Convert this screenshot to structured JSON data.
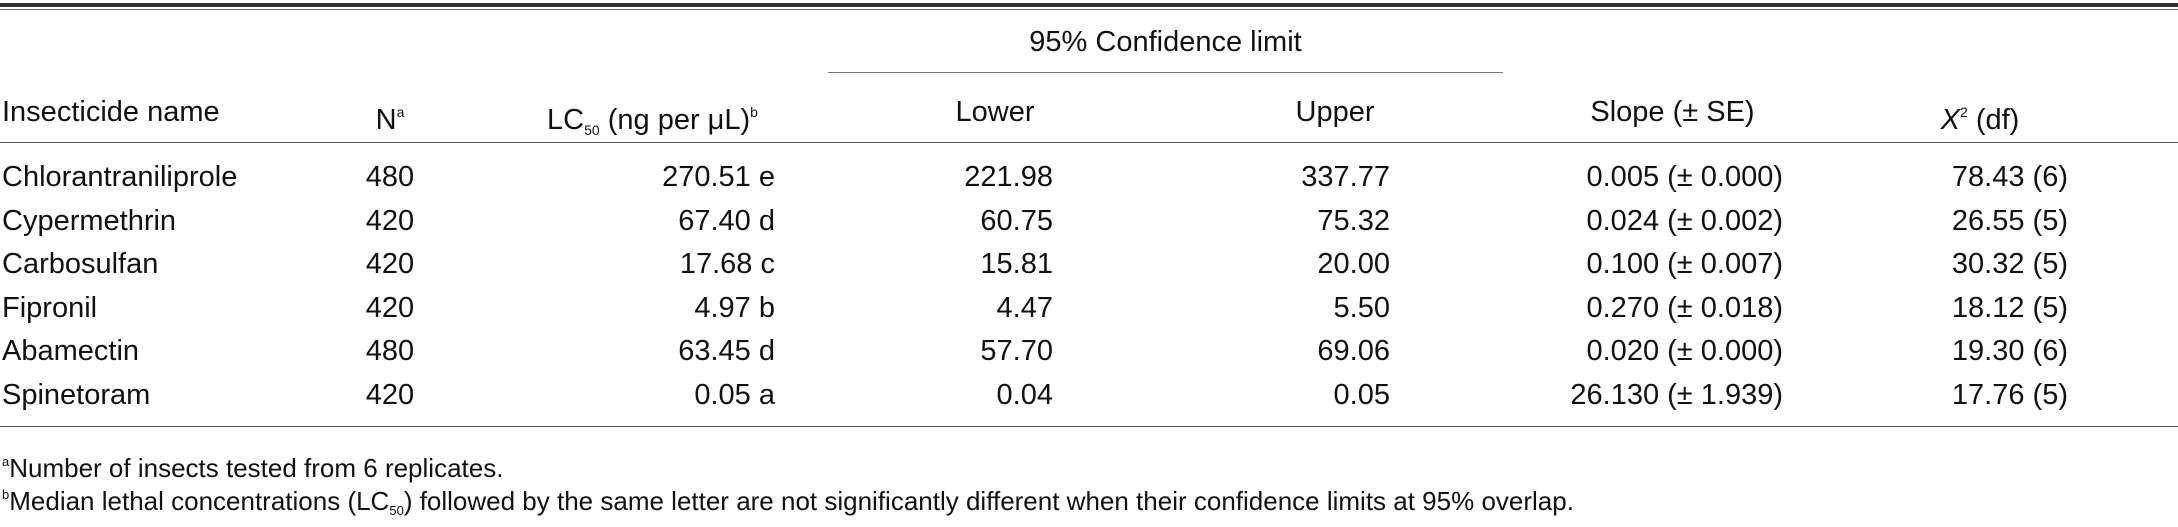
{
  "table": {
    "ci_header": "95% Confidence limit",
    "headers": {
      "name": "Insecticide name",
      "n": "N",
      "n_sup": "a",
      "lc50_prefix": "LC",
      "lc50_sub": "50",
      "lc50_suffix": " (ng per μL)",
      "lc50_sup": "b",
      "lower": "Lower",
      "upper": "Upper",
      "slope": "Slope (± SE)",
      "chi_x": "X",
      "chi_sup": "2",
      "chi_suffix": " (df)"
    },
    "rows": [
      {
        "name": "Chlorantraniliprole",
        "n": "480",
        "lc50": "270.51 e",
        "lower": "221.98",
        "upper": "337.77",
        "slope": "0.005 (± 0.000)",
        "chi": "78.43 (6)"
      },
      {
        "name": "Cypermethrin",
        "n": "420",
        "lc50": "67.40 d",
        "lower": "60.75",
        "upper": "75.32",
        "slope": "0.024 (± 0.002)",
        "chi": "26.55 (5)"
      },
      {
        "name": "Carbosulfan",
        "n": "420",
        "lc50": "17.68 c",
        "lower": "15.81",
        "upper": "20.00",
        "slope": "0.100 (± 0.007)",
        "chi": "30.32 (5)"
      },
      {
        "name": "Fipronil",
        "n": "420",
        "lc50": "4.97 b",
        "lower": "4.47",
        "upper": "5.50",
        "slope": "0.270 (± 0.018)",
        "chi": "18.12 (5)"
      },
      {
        "name": "Abamectin",
        "n": "480",
        "lc50": "63.45 d",
        "lower": "57.70",
        "upper": "69.06",
        "slope": "0.020 (± 0.000)",
        "chi": "19.30 (6)"
      },
      {
        "name": "Spinetoram",
        "n": "420",
        "lc50": "0.05 a",
        "lower": "0.04",
        "upper": "0.05",
        "slope": "26.130 (± 1.939)",
        "chi": "17.76 (5)"
      }
    ]
  },
  "footnotes": {
    "a_mark": "a",
    "a_text": "Number of insects tested from 6 replicates.",
    "b_mark": "b",
    "b_text_1": "Median lethal concentrations (LC",
    "b_sub": "50",
    "b_text_2": ") followed by the same letter are not significantly different when their confidence limits at 95% overlap."
  }
}
